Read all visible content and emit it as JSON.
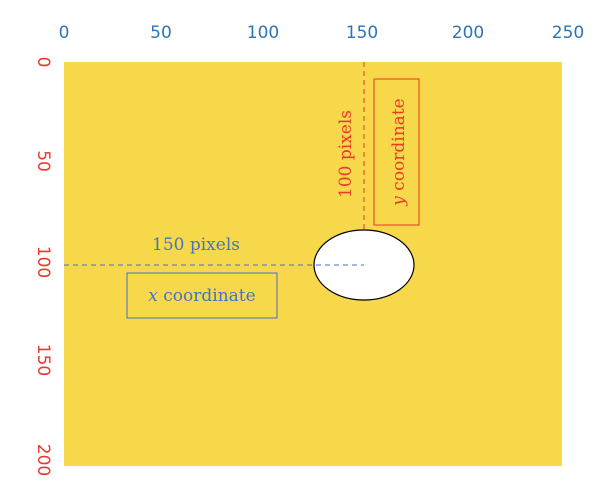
{
  "colors": {
    "canvas_fill": "#f7d84a",
    "x_axis_text": "#2e75b6",
    "y_axis_text": "#e8392b",
    "x_annotation": "#4472c4",
    "y_annotation": "#e8392b",
    "ellipse_fill": "#ffffff",
    "ellipse_stroke": "#000000"
  },
  "x_axis": {
    "ticks": [
      "0",
      "50",
      "100",
      "150",
      "200",
      "250"
    ]
  },
  "y_axis": {
    "ticks": [
      "0",
      "50",
      "100",
      "150",
      "200"
    ]
  },
  "x_annotation": {
    "distance_label": "150 pixels",
    "box_label_italic": "x",
    "box_label_rest": " coordinate"
  },
  "y_annotation": {
    "distance_label": "100 pixels",
    "box_label_italic": "y",
    "box_label_rest": " coordinate"
  },
  "point": {
    "x": 150,
    "y": 100
  }
}
